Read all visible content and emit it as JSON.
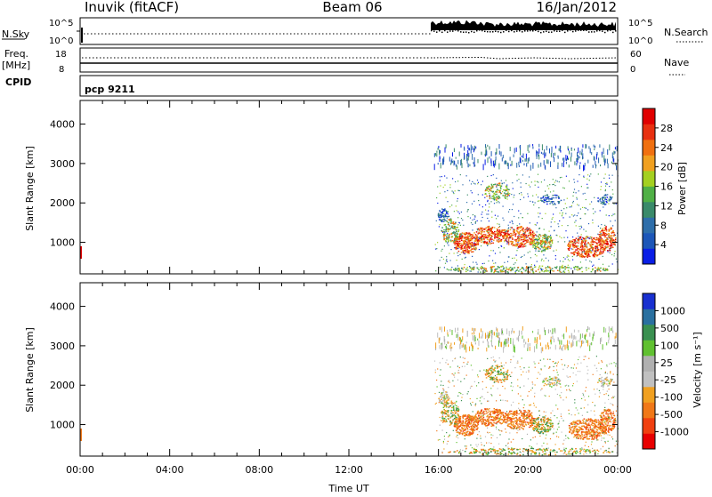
{
  "header": {
    "station": "Inuvik (fitACF)",
    "beam": "Beam 06",
    "date": "16/Jan/2012"
  },
  "top_panels": {
    "nsky_label": "N.Sky",
    "nsky_ticks": [
      "10^5",
      "10^0"
    ],
    "nsearch_label": "N.Search",
    "nsearch_ticks": [
      "10^5",
      "10^0"
    ],
    "freq_label": "Freq.",
    "freq_unit": "[MHz]",
    "freq_ticks": [
      "18",
      "8"
    ],
    "nave_label": "Nave",
    "nave_ticks": [
      "60",
      "0"
    ],
    "cpid_label": "CPID",
    "cpid_value": "pcp 9211"
  },
  "colors": {
    "power": [
      "#0a1ee6",
      "#1c56b8",
      "#2e6eaa",
      "#3a8a6a",
      "#50b046",
      "#a4d020",
      "#f0a020",
      "#f07010",
      "#e83010",
      "#e00000"
    ],
    "velocity": [
      "#e80000",
      "#f04010",
      "#f07818",
      "#f0a020",
      "#c0c0c0",
      "#b0b0b0",
      "#60c030",
      "#3a9050",
      "#2a70a0",
      "#1830d0"
    ]
  },
  "chart_data": [
    {
      "type": "heatmap",
      "name": "power",
      "ylabel": "Slant Range [km]",
      "yticks": [
        1000,
        2000,
        3000,
        4000
      ],
      "ylim": [
        200,
        4600
      ],
      "xticks": [
        "00:00",
        "04:00",
        "08:00",
        "12:00",
        "16:00",
        "20:00",
        "00:00"
      ],
      "xlim": [
        0,
        24
      ],
      "colorbar": {
        "label": "Power [dB]",
        "ticks": [
          "4",
          "8",
          "12",
          "16",
          "20",
          "24",
          "28"
        ],
        "range": [
          0,
          30
        ]
      },
      "data_time_range_hours": [
        15.8,
        24.0
      ]
    },
    {
      "type": "heatmap",
      "name": "velocity",
      "ylabel": "Slant Range [km]",
      "yticks": [
        1000,
        2000,
        3000,
        4000
      ],
      "ylim": [
        200,
        4600
      ],
      "xticks": [
        "00:00",
        "04:00",
        "08:00",
        "12:00",
        "16:00",
        "20:00",
        "00:00"
      ],
      "xlim": [
        0,
        24
      ],
      "xlabel": "Time UT",
      "colorbar": {
        "label": "Velocity [m s⁻¹]",
        "ticks": [
          "-1000",
          "-500",
          "-100",
          "-25",
          "25",
          "100",
          "500",
          "1000"
        ],
        "range": [
          -1200,
          1200
        ]
      },
      "data_time_range_hours": [
        15.8,
        24.0
      ]
    }
  ]
}
